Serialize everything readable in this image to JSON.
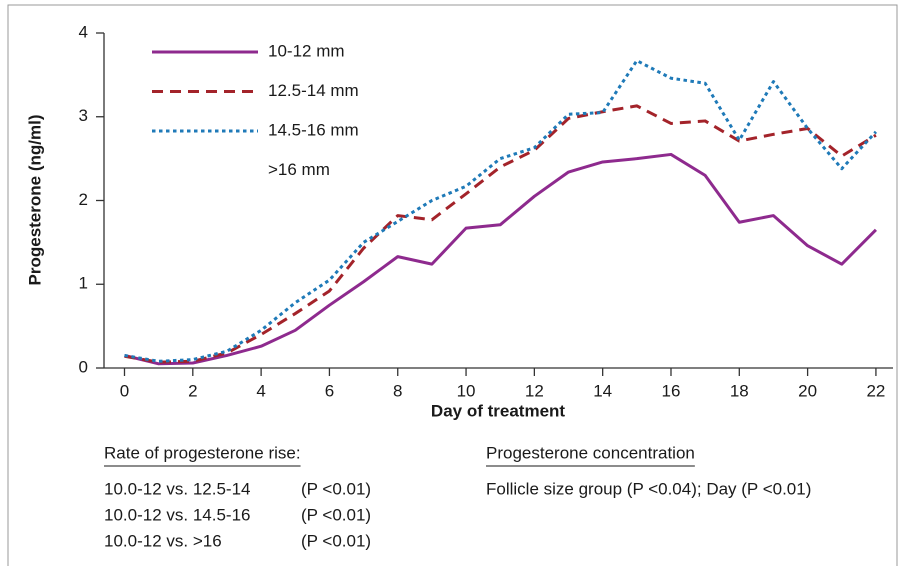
{
  "chart_data": {
    "type": "line",
    "x_label": "Day of treatment",
    "y_label": "Progesterone (ng/ml)",
    "x": [
      0,
      1,
      2,
      3,
      4,
      5,
      6,
      7,
      8,
      9,
      10,
      11,
      12,
      13,
      14,
      15,
      16,
      17,
      18,
      19,
      20,
      21,
      22
    ],
    "xlim": [
      -0.6,
      22.5
    ],
    "xticks": [
      0,
      2,
      4,
      6,
      8,
      10,
      12,
      14,
      16,
      18,
      20,
      22
    ],
    "ylim": [
      0,
      4
    ],
    "yticks": [
      0,
      1,
      2,
      3,
      4
    ],
    "grid": false,
    "series": [
      {
        "name": "10-12 mm",
        "color": "#8e2a8e",
        "dash": "solid",
        "values": [
          0.15,
          0.05,
          0.06,
          0.15,
          0.26,
          0.45,
          0.75,
          1.03,
          1.33,
          1.24,
          1.67,
          1.71,
          2.05,
          2.34,
          2.46,
          2.5,
          2.55,
          2.3,
          1.74,
          1.82,
          1.46,
          1.24,
          1.65
        ]
      },
      {
        "name": "12.5-14 mm",
        "color": "#a3232a",
        "dash": "dashed",
        "values": [
          0.14,
          0.07,
          0.08,
          0.18,
          0.4,
          0.65,
          0.92,
          1.43,
          1.82,
          1.77,
          2.08,
          2.4,
          2.6,
          2.98,
          3.06,
          3.13,
          2.92,
          2.95,
          2.71,
          2.79,
          2.86,
          2.53,
          2.78
        ]
      },
      {
        "name": "14.5-16 mm",
        "color": "#1f7ab8",
        "dash": "dotted",
        "values": [
          0.15,
          0.08,
          0.1,
          0.2,
          0.45,
          0.78,
          1.05,
          1.5,
          1.75,
          2.0,
          2.17,
          2.5,
          2.63,
          3.03,
          3.05,
          3.67,
          3.46,
          3.4,
          2.72,
          3.42,
          2.86,
          2.38,
          2.82
        ]
      },
      {
        "name": ">16 mm",
        "values": [
          null,
          null,
          null,
          null,
          null,
          null,
          null,
          null,
          null,
          null,
          null,
          null,
          null,
          null,
          null,
          null,
          null,
          null,
          null,
          null,
          null,
          null,
          null
        ]
      }
    ],
    "notes": [
      {
        "heading": "Rate of progesterone rise:",
        "rows": [
          {
            "comparison": "10.0-12 vs. 12.5-14",
            "p": "(P <0.01)"
          },
          {
            "comparison": "10.0-12 vs. 14.5-16",
            "p": "(P <0.01)"
          },
          {
            "comparison": "10.0-12 vs. >16",
            "p": "(P <0.01)"
          }
        ]
      },
      {
        "heading": "Progesterone concentration",
        "rows": [
          {
            "comparison": "Follicle size group (P <0.04); Day (P <0.01)"
          }
        ]
      }
    ]
  }
}
